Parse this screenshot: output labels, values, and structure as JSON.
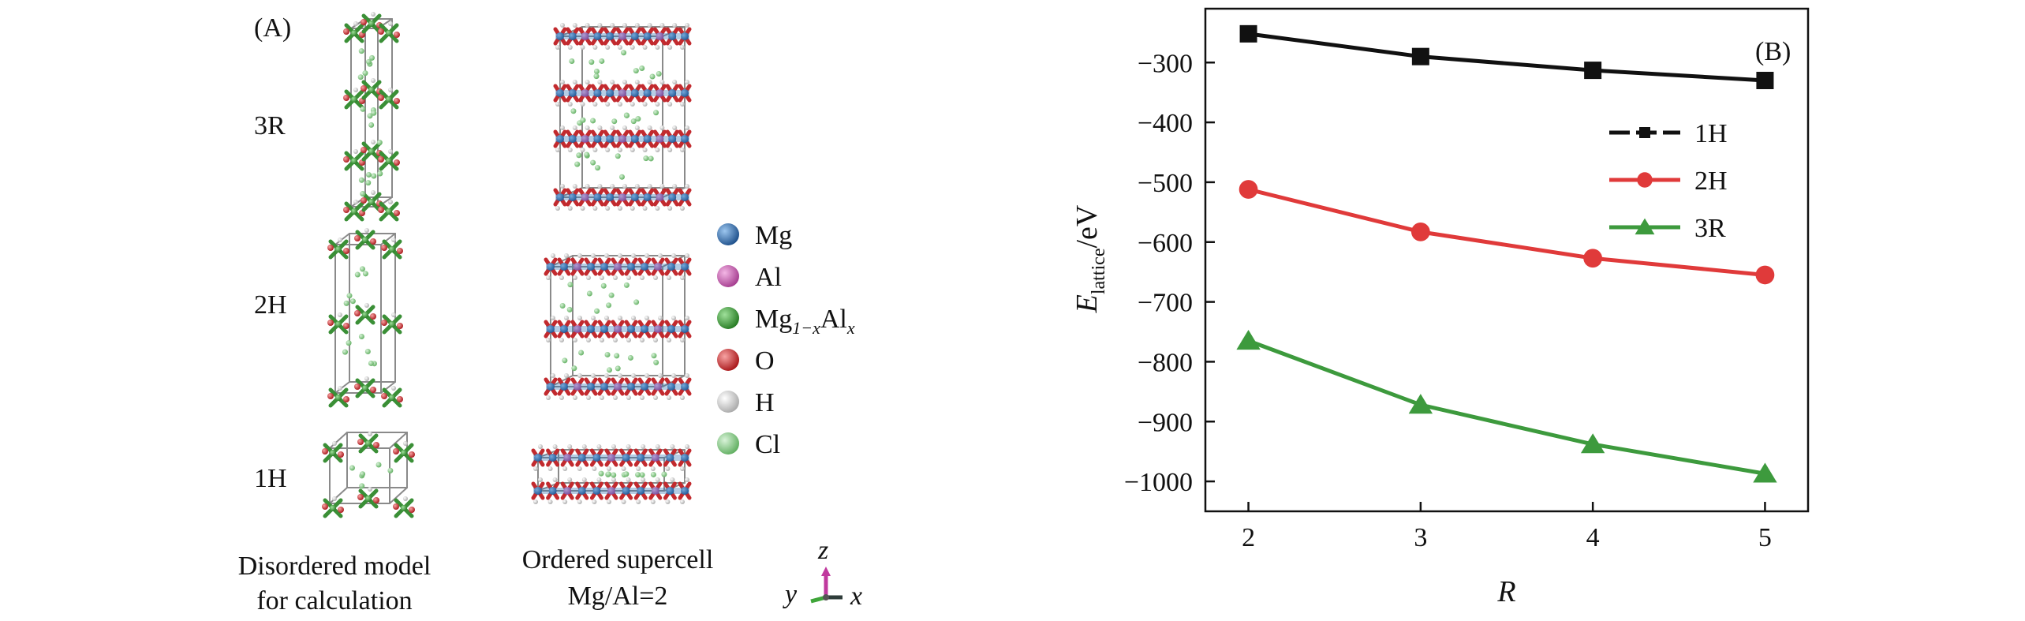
{
  "panel_a": {
    "label": "(A)",
    "rows": [
      {
        "key": "3R",
        "label": "3R"
      },
      {
        "key": "2H",
        "label": "2H"
      },
      {
        "key": "1H",
        "label": "1H"
      }
    ],
    "captions": {
      "disordered": [
        "Disordered model",
        "for calculation"
      ],
      "ordered": [
        "Ordered supercell",
        "Mg/Al=2"
      ]
    },
    "axes": {
      "z": "z",
      "y": "y",
      "x": "x"
    },
    "legend": [
      {
        "label": "Mg",
        "color": "#2d6fb3"
      },
      {
        "label": "Al",
        "color": "#d064b8"
      },
      {
        "label": "Mg",
        "sub": "1−x",
        "label2": "Al",
        "sub2": "x",
        "color": "#3fa53a"
      },
      {
        "label": "O",
        "color": "#d8282c"
      },
      {
        "label": "H",
        "color": "#f2f2f2"
      },
      {
        "label": "Cl",
        "color": "#8fd08f"
      }
    ]
  },
  "chart_data": {
    "type": "line",
    "panel_label": "(B)",
    "x": [
      2,
      3,
      4,
      5
    ],
    "series": [
      {
        "name": "1H",
        "values": [
          -252,
          -290,
          -313,
          -330
        ],
        "color": "#111111",
        "marker": "square"
      },
      {
        "name": "2H",
        "values": [
          -512,
          -583,
          -627,
          -655
        ],
        "color": "#e03a3a",
        "marker": "circle"
      },
      {
        "name": "3R",
        "values": [
          -765,
          -872,
          -938,
          -987
        ],
        "color": "#3d9a3d",
        "marker": "triangle"
      }
    ],
    "xlabel": "R",
    "ylabel": {
      "main": "E",
      "sub": "lattice",
      "unit": "/eV"
    },
    "xlim": [
      1.75,
      5.25
    ],
    "ylim": [
      -1050,
      -210
    ],
    "xticks": [
      2,
      3,
      4,
      5
    ],
    "yticks": [
      -300,
      -400,
      -500,
      -600,
      -700,
      -800,
      -900,
      -1000
    ],
    "grid": false,
    "legend_position": "top-right"
  }
}
